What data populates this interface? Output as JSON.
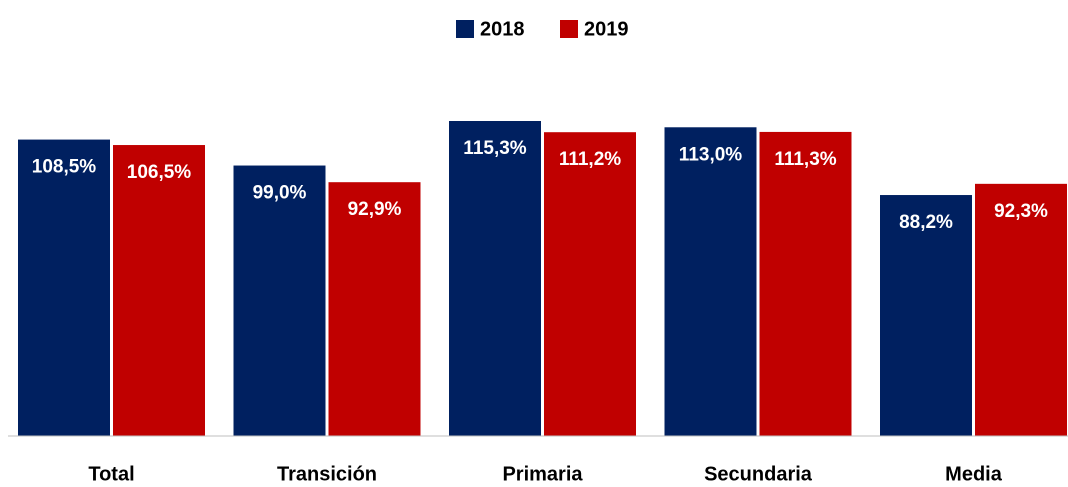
{
  "chart_data": {
    "type": "bar",
    "categories": [
      "Total",
      "Transición",
      "Primaria",
      "Secundaria",
      "Media"
    ],
    "series": [
      {
        "name": "2018",
        "color": "#002060",
        "values": [
          108.5,
          99.0,
          115.3,
          113.0,
          88.2
        ],
        "value_labels": [
          "108,5%",
          "99,0%",
          "115,3%",
          "113,0%",
          "88,2%"
        ]
      },
      {
        "name": "2019",
        "color": "#c00000",
        "values": [
          106.5,
          92.9,
          111.2,
          111.3,
          92.3
        ],
        "value_labels": [
          "106,5%",
          "92,9%",
          "111,2%",
          "111,3%",
          "92,3%"
        ]
      }
    ],
    "legend": "top"
  }
}
